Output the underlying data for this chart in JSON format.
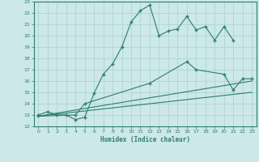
{
  "xlabel": "Humidex (Indice chaleur)",
  "bg_color": "#cce8e8",
  "line_color": "#2e7d6e",
  "grid_color": "#aad0d0",
  "xlim": [
    -0.5,
    23.5
  ],
  "ylim": [
    12,
    23
  ],
  "yticks": [
    12,
    13,
    14,
    15,
    16,
    17,
    18,
    19,
    20,
    21,
    22,
    23
  ],
  "xticks": [
    0,
    1,
    2,
    3,
    4,
    5,
    6,
    7,
    8,
    9,
    10,
    11,
    12,
    13,
    14,
    15,
    16,
    17,
    18,
    19,
    20,
    21,
    22,
    23
  ],
  "series": [
    {
      "x": [
        0,
        1,
        2,
        3,
        4,
        5,
        6,
        7,
        8,
        9,
        10,
        11,
        12,
        13,
        14,
        15,
        16,
        17,
        18,
        19,
        20,
        21
      ],
      "y": [
        13.0,
        13.3,
        13.0,
        13.0,
        12.6,
        12.8,
        14.9,
        16.6,
        17.5,
        19.0,
        21.2,
        22.2,
        22.7,
        20.0,
        20.4,
        20.6,
        21.7,
        20.5,
        20.8,
        19.6,
        20.8,
        19.6
      ],
      "marker": true
    },
    {
      "x": [
        0,
        4,
        5,
        12,
        16,
        17,
        20,
        21,
        22,
        23
      ],
      "y": [
        12.9,
        13.0,
        14.0,
        15.8,
        17.7,
        17.0,
        16.6,
        15.2,
        16.2,
        16.2
      ],
      "marker": true
    },
    {
      "x": [
        0,
        23
      ],
      "y": [
        12.9,
        16.0
      ],
      "marker": false
    },
    {
      "x": [
        0,
        23
      ],
      "y": [
        12.9,
        15.0
      ],
      "marker": false
    }
  ]
}
